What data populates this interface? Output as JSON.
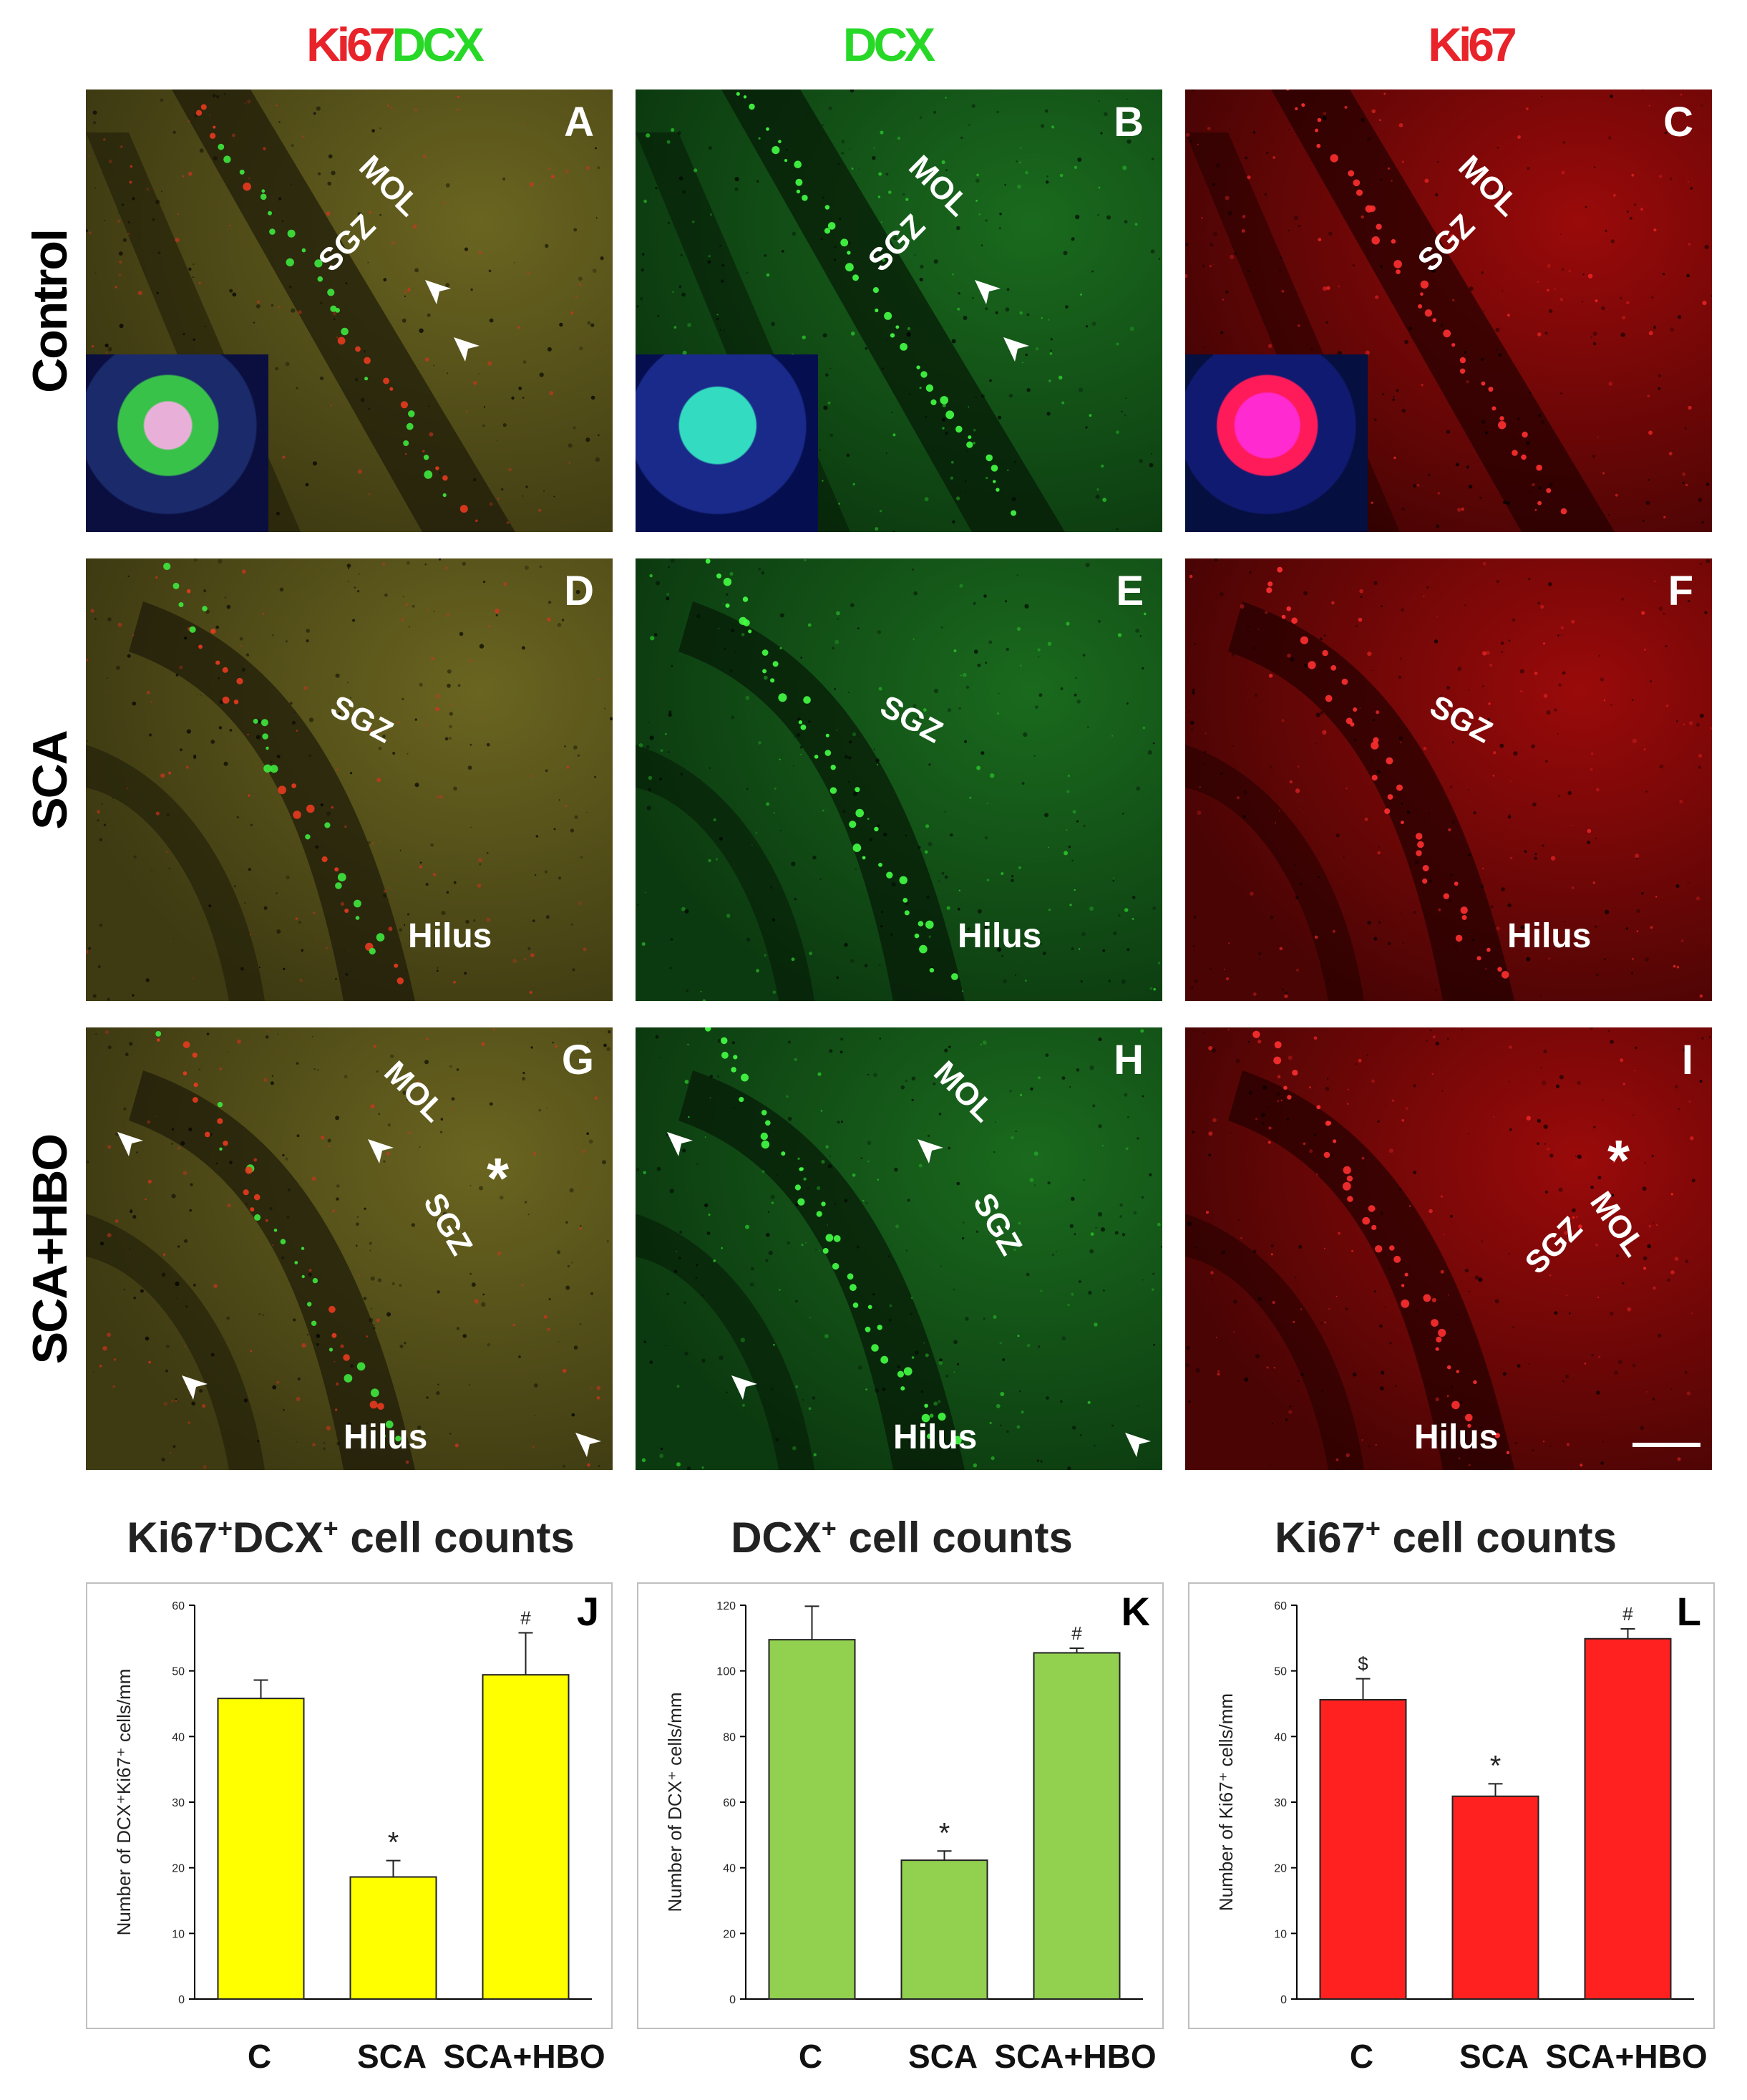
{
  "column_headers": {
    "merged": {
      "ki67": "Ki67",
      "dcx": "DCX"
    },
    "dcx": "DCX",
    "ki67": "Ki67"
  },
  "row_headers": [
    "Control",
    "SCA",
    "SCA+HBO"
  ],
  "colors": {
    "red": "#e8232a",
    "green": "#27d827",
    "yellow_bar": "#ffff00",
    "green_bar": "#92d050",
    "red_bar": "#ff2020"
  },
  "panels": [
    {
      "label": "A",
      "labels": {
        "mol": "MOL",
        "sgz": "SGZ"
      }
    },
    {
      "label": "B",
      "labels": {
        "mol": "MOL",
        "sgz": "SGZ"
      }
    },
    {
      "label": "C",
      "labels": {
        "mol": "MOL",
        "sgz": "SGZ"
      }
    },
    {
      "label": "D",
      "labels": {
        "sgz": "SGZ",
        "hilus": "Hilus"
      }
    },
    {
      "label": "E",
      "labels": {
        "sgz": "SGZ",
        "hilus": "Hilus"
      }
    },
    {
      "label": "F",
      "labels": {
        "sgz": "SGZ",
        "hilus": "Hilus"
      }
    },
    {
      "label": "G",
      "labels": {
        "mol": "MOL",
        "sgz": "SGZ",
        "hilus": "Hilus",
        "star": "*"
      }
    },
    {
      "label": "H",
      "labels": {
        "mol": "MOL",
        "sgz": "SGZ",
        "hilus": "Hilus"
      }
    },
    {
      "label": "I",
      "labels": {
        "mol": "MOL",
        "sgz": "SGZ",
        "hilus": "Hilus",
        "star": "*"
      }
    }
  ],
  "graph_titles": [
    {
      "a": "Ki67",
      "sup1": "+",
      "b": "DCX",
      "sup2": "+",
      "c": " cell counts"
    },
    {
      "a": "DCX",
      "sup1": "+",
      "c": " cell counts"
    },
    {
      "a": "Ki67",
      "sup1": "+",
      "c": " cell counts"
    }
  ],
  "chart_data": [
    {
      "type": "bar",
      "panel_label": "J",
      "categories": [
        "C",
        "SCA",
        "SCA+HBO"
      ],
      "values": [
        45.8,
        18.6,
        49.4
      ],
      "errors": [
        2.8,
        2.5,
        6.4
      ],
      "markers": [
        "",
        "*",
        "#"
      ],
      "ylabel": "Number of DCX⁺Ki67⁺ cells/mm",
      "ylim": [
        0,
        60
      ],
      "yticks": [
        0,
        10,
        20,
        30,
        40,
        50,
        60
      ],
      "color": "#ffff00"
    },
    {
      "type": "bar",
      "panel_label": "K",
      "categories": [
        "C",
        "SCA",
        "SCA+HBO"
      ],
      "values": [
        109.5,
        42.3,
        105.5
      ],
      "errors": [
        10.2,
        2.8,
        1.4
      ],
      "markers": [
        "",
        "*",
        "#"
      ],
      "ylabel": "Number of DCX⁺ cells/mm",
      "ylim": [
        0,
        120
      ],
      "yticks": [
        0,
        20,
        40,
        60,
        80,
        100,
        120
      ],
      "color": "#92d050"
    },
    {
      "type": "bar",
      "panel_label": "L",
      "categories": [
        "C",
        "SCA",
        "SCA+HBO"
      ],
      "values": [
        45.6,
        30.9,
        54.9
      ],
      "errors": [
        3.2,
        1.9,
        1.5
      ],
      "markers": [
        "$",
        "*",
        "#"
      ],
      "ylabel": "Number of Ki67⁺ cells/mm",
      "ylim": [
        0,
        60
      ],
      "yticks": [
        0,
        10,
        20,
        30,
        40,
        50,
        60
      ],
      "color": "#ff2020"
    }
  ]
}
